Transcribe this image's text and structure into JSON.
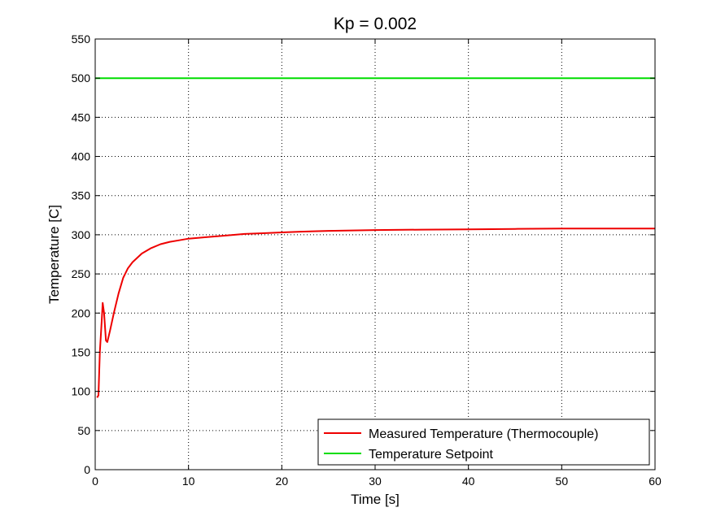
{
  "chart_data": {
    "type": "line",
    "title": "Kp = 0.002",
    "xlabel": "Time [s]",
    "ylabel": "Temperature [C]",
    "xlim": [
      0,
      60
    ],
    "ylim": [
      0,
      550
    ],
    "xticks": [
      0,
      10,
      20,
      30,
      40,
      50,
      60
    ],
    "yticks": [
      0,
      50,
      100,
      150,
      200,
      250,
      300,
      350,
      400,
      450,
      500,
      550
    ],
    "grid": true,
    "grid_style": "dotted",
    "legend_position": "bottom-right",
    "series": [
      {
        "name": "Measured Temperature (Thermocouple)",
        "color": "#ee0000",
        "x": [
          0.2,
          0.35,
          0.5,
          0.7,
          0.8,
          0.95,
          1.15,
          1.3,
          1.6,
          2,
          2.5,
          3,
          3.5,
          4,
          5,
          6,
          7,
          8,
          9,
          10,
          12,
          14,
          16,
          18,
          20,
          22,
          25,
          30,
          35,
          40,
          45,
          50,
          55,
          60
        ],
        "y": [
          92,
          95,
          150,
          190,
          213,
          200,
          165,
          163,
          178,
          200,
          225,
          245,
          257,
          265,
          276,
          283,
          288,
          291,
          293,
          295,
          297,
          299,
          301,
          302,
          303,
          304,
          305,
          306,
          306.5,
          307,
          307.5,
          308,
          308,
          308
        ]
      },
      {
        "name": "Temperature Setpoint",
        "color": "#00dd00",
        "x": [
          0,
          60
        ],
        "y": [
          500,
          500
        ]
      }
    ]
  }
}
